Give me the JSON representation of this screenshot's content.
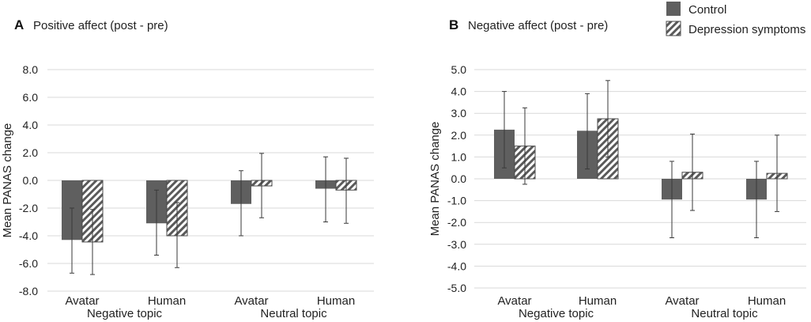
{
  "legend": {
    "entries": [
      {
        "name": "Control",
        "style": "solid"
      },
      {
        "name": "Depression symptoms",
        "style": "hatched"
      }
    ]
  },
  "colors": {
    "control": "#5f5f5f",
    "depression_stroke": "#4a4a4a",
    "hatch": "#5a5a5a",
    "grid": "#d9d9d9"
  },
  "chart_data": [
    {
      "type": "bar",
      "panel": "A",
      "title": "Positive affect (post - pre)",
      "ylabel": "Mean PANAS change",
      "xlabel": "",
      "ylim": [
        -8,
        8
      ],
      "yticks": [
        -8,
        -6,
        -4,
        -2,
        0,
        2,
        4,
        6,
        8
      ],
      "ytick_labels": [
        "-8.0",
        "-6.0",
        "-4.0",
        "-2.0",
        "0.0",
        "2.0",
        "4.0",
        "6.0",
        "8.0"
      ],
      "categories": [
        "Avatar",
        "Human",
        "Avatar",
        "Human"
      ],
      "groups": [
        {
          "label": "Negative topic",
          "categories": [
            0,
            1
          ]
        },
        {
          "label": "Neutral topic",
          "categories": [
            2,
            3
          ]
        }
      ],
      "grid": true,
      "series": [
        {
          "name": "Control",
          "values": [
            -4.3,
            -3.1,
            -1.7,
            -0.6
          ],
          "err_low": [
            -6.7,
            -5.4,
            -4.0,
            -3.0
          ],
          "err_high": [
            -2.0,
            -0.7,
            0.7,
            1.7
          ]
        },
        {
          "name": "Depression symptoms",
          "values": [
            -4.45,
            -4.0,
            -0.4,
            -0.7
          ],
          "err_low": [
            -6.8,
            -6.3,
            -2.7,
            -3.1
          ],
          "err_high": [
            -2.1,
            -1.6,
            1.95,
            1.6
          ]
        }
      ]
    },
    {
      "type": "bar",
      "panel": "B",
      "title": "Negative affect (post - pre)",
      "ylabel": "Mean PANAS change",
      "xlabel": "",
      "ylim": [
        -5,
        5
      ],
      "yticks": [
        -5,
        -4,
        -3,
        -2,
        -1,
        0,
        1,
        2,
        3,
        4,
        5
      ],
      "ytick_labels": [
        "-5.0",
        "-4.0",
        "-3.0",
        "-2.0",
        "-1.0",
        "0.0",
        "1.0",
        "2.0",
        "3.0",
        "4.0",
        "5.0"
      ],
      "categories": [
        "Avatar",
        "Human",
        "Avatar",
        "Human"
      ],
      "groups": [
        {
          "label": "Negative topic",
          "categories": [
            0,
            1
          ]
        },
        {
          "label": "Neutral topic",
          "categories": [
            2,
            3
          ]
        }
      ],
      "grid": true,
      "series": [
        {
          "name": "Control",
          "values": [
            2.25,
            2.2,
            -0.95,
            -0.95
          ],
          "err_low": [
            0.5,
            0.45,
            -2.7,
            -2.7
          ],
          "err_high": [
            4.0,
            3.9,
            0.8,
            0.8
          ]
        },
        {
          "name": "Depression symptoms",
          "values": [
            1.5,
            2.75,
            0.3,
            0.25
          ],
          "err_low": [
            -0.25,
            1.0,
            -1.45,
            -1.5
          ],
          "err_high": [
            3.25,
            4.5,
            2.05,
            2.0
          ]
        }
      ]
    }
  ]
}
